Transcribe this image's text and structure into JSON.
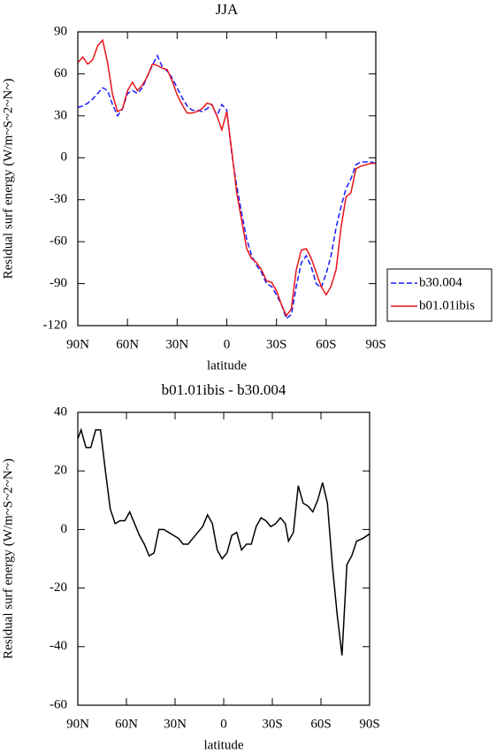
{
  "chart_data": [
    {
      "type": "line",
      "title": "JJA",
      "xlabel": "latitude",
      "ylabel": "Residual surf energy (W/m~S~2~N~)",
      "x": [
        90,
        87,
        84,
        81,
        78,
        75,
        72,
        69,
        66,
        63,
        60,
        57,
        54,
        51,
        48,
        45,
        42,
        39,
        36,
        33,
        30,
        27,
        24,
        21,
        18,
        15,
        12,
        9,
        6,
        3,
        0,
        -3,
        -6,
        -9,
        -12,
        -15,
        -18,
        -21,
        -24,
        -27,
        -30,
        -33,
        -36,
        -39,
        -42,
        -45,
        -48,
        -51,
        -54,
        -57,
        -60,
        -63,
        -66,
        -69,
        -72,
        -75,
        -78,
        -81,
        -84,
        -87,
        -90
      ],
      "series": [
        {
          "name": "b30.004",
          "color": "#1a1aff",
          "dash": "dashed",
          "values": [
            36,
            37,
            39,
            42,
            46,
            50,
            48,
            38,
            30,
            35,
            46,
            48,
            46,
            50,
            58,
            66,
            73,
            65,
            62,
            57,
            50,
            43,
            37,
            34,
            34,
            33,
            35,
            38,
            30,
            38,
            34,
            3,
            -20,
            -40,
            -58,
            -70,
            -77,
            -82,
            -90,
            -92,
            -98,
            -105,
            -115,
            -112,
            -92,
            -75,
            -70,
            -78,
            -90,
            -93,
            -83,
            -70,
            -50,
            -35,
            -22,
            -15,
            -5,
            -3,
            -3,
            -3,
            -4
          ]
        },
        {
          "name": "b01.01ibis",
          "color": "#e8141a",
          "dash": "solid",
          "values": [
            68,
            72,
            67,
            70,
            80,
            84,
            68,
            45,
            33,
            35,
            48,
            54,
            48,
            52,
            58,
            67,
            66,
            64,
            63,
            55,
            45,
            38,
            32,
            32,
            33,
            35,
            39,
            38,
            30,
            20,
            33,
            5,
            -25,
            -45,
            -65,
            -72,
            -75,
            -80,
            -88,
            -89,
            -95,
            -105,
            -113,
            -108,
            -80,
            -66,
            -65,
            -72,
            -82,
            -92,
            -98,
            -92,
            -80,
            -50,
            -28,
            -25,
            -8,
            -6,
            -5,
            -4,
            -4
          ]
        }
      ],
      "xlim": [
        90,
        -90
      ],
      "xticks": [
        {
          "value": 90,
          "label": "90N"
        },
        {
          "value": 60,
          "label": "60N"
        },
        {
          "value": 30,
          "label": "30N"
        },
        0,
        {
          "value": -30,
          "label": "30S"
        },
        {
          "value": -60,
          "label": "60S"
        },
        {
          "value": -90,
          "label": "90S"
        }
      ],
      "ylim": [
        -120,
        90
      ],
      "yticks": [
        -120,
        -90,
        -60,
        -30,
        0,
        30,
        60,
        90
      ],
      "legend": "right"
    },
    {
      "type": "line",
      "title": "b01.01ibis - b30.004",
      "xlabel": "latitude",
      "ylabel": "Residual surf energy (W/m~S~2~N~)",
      "x": [
        90,
        88,
        85,
        82,
        79,
        76,
        73,
        70,
        67,
        64,
        61,
        58,
        55,
        52,
        49,
        46,
        43,
        40,
        37,
        34,
        31,
        28,
        25,
        22,
        19,
        16,
        13,
        10,
        7,
        4,
        1,
        -2,
        -5,
        -8,
        -11,
        -14,
        -17,
        -20,
        -23,
        -26,
        -29,
        -32,
        -35,
        -38,
        -40,
        -43,
        -46,
        -49,
        -52,
        -55,
        -58,
        -61,
        -64,
        -67,
        -70,
        -73,
        -76,
        -79,
        -82,
        -86,
        -90
      ],
      "series": [
        {
          "color": "#000000",
          "dash": "solid",
          "values": [
            31,
            34,
            28,
            28,
            34,
            34,
            20,
            7,
            2,
            3,
            3,
            6,
            2,
            -2,
            -5,
            -9,
            -8,
            0,
            0,
            -1,
            -2,
            -3,
            -5,
            -5,
            -3,
            -1,
            1,
            5,
            2,
            -7,
            -10,
            -8,
            -2,
            -1,
            -7,
            -5,
            -5,
            1,
            4,
            3,
            1,
            2,
            4,
            2,
            -4,
            -1,
            15,
            9,
            8,
            6,
            10,
            16,
            9,
            -12,
            -29,
            -43,
            -12,
            -9,
            -4,
            -3,
            -1.5
          ]
        }
      ],
      "xlim": [
        90,
        -90
      ],
      "xticks": [
        {
          "value": 90,
          "label": "90N"
        },
        {
          "value": 60,
          "label": "60N"
        },
        {
          "value": 30,
          "label": "30N"
        },
        0,
        {
          "value": -30,
          "label": "30S"
        },
        {
          "value": -60,
          "label": "60S"
        },
        {
          "value": -90,
          "label": "90S"
        }
      ],
      "ylim": [
        -60,
        40
      ],
      "yticks": [
        -60,
        -40,
        -20,
        0,
        20,
        40
      ]
    }
  ]
}
